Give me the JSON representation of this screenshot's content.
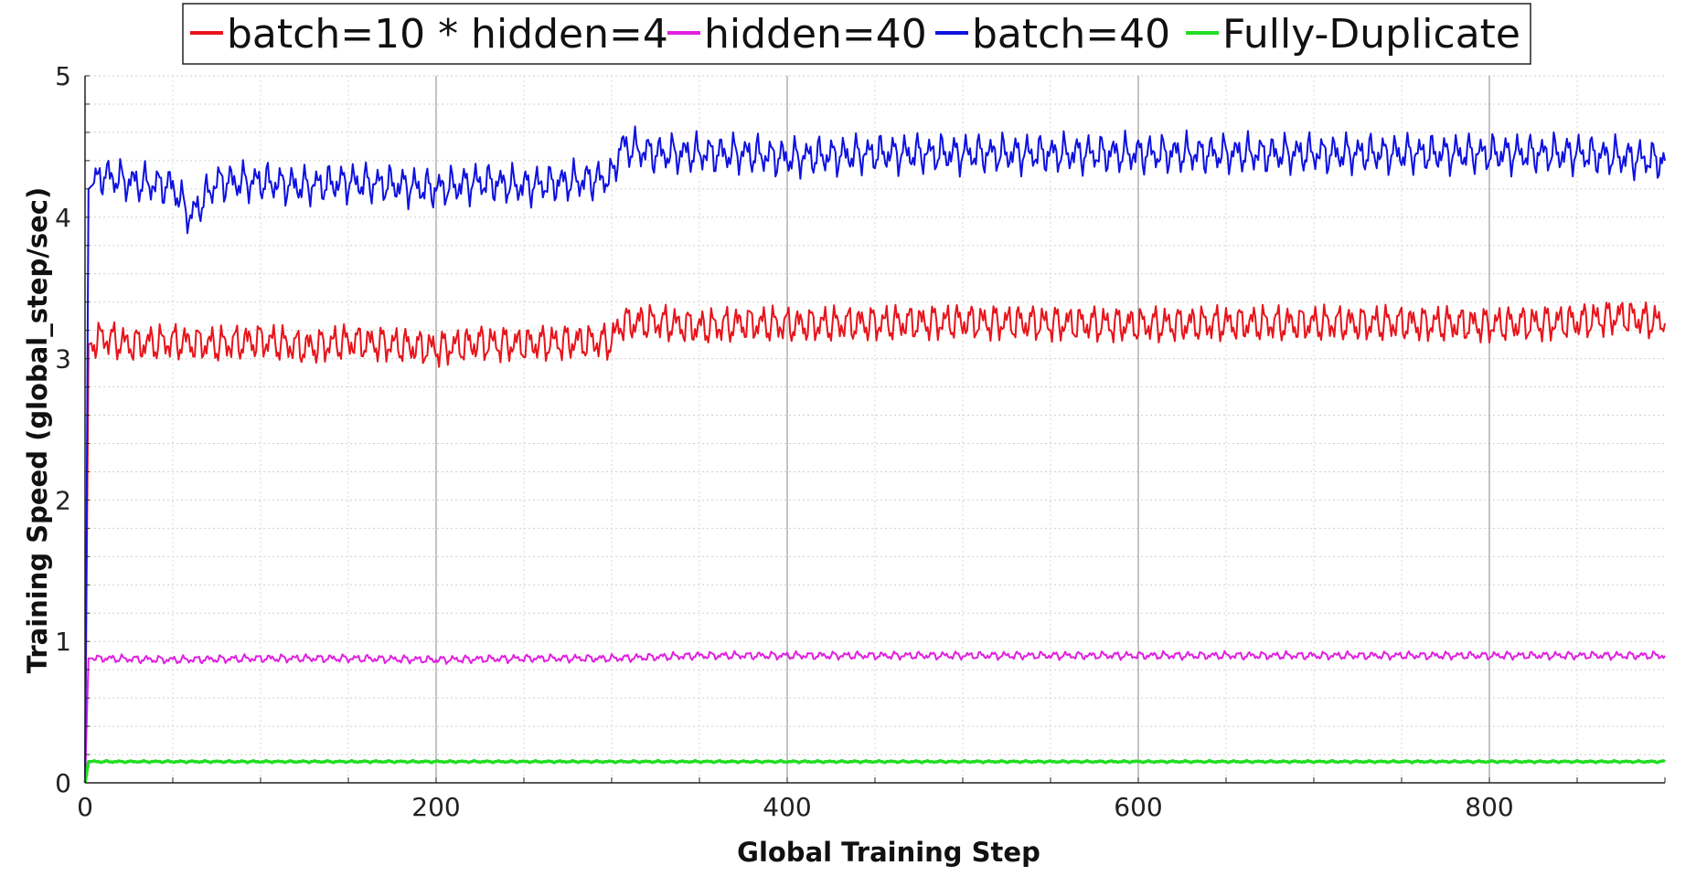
{
  "chart_data": {
    "type": "line",
    "title": "",
    "xlabel": "Global Training Step",
    "ylabel": "Training Speed (global_step/sec)",
    "xlim": [
      0,
      900
    ],
    "ylim": [
      0,
      5
    ],
    "x_ticks": [
      0,
      200,
      400,
      600,
      800
    ],
    "y_ticks": [
      0,
      1,
      2,
      3,
      4,
      5
    ],
    "grid": true,
    "legend_position": "top-center",
    "series": [
      {
        "name": "batch=10 * hidden=4",
        "color": "#e8141b",
        "x": [
          0,
          2,
          10,
          25,
          50,
          75,
          100,
          125,
          150,
          175,
          200,
          225,
          250,
          275,
          300,
          305,
          325,
          350,
          375,
          400,
          450,
          500,
          550,
          600,
          650,
          700,
          750,
          800,
          850,
          875,
          900
        ],
        "y": [
          0.0,
          3.1,
          3.15,
          3.1,
          3.12,
          3.1,
          3.13,
          3.08,
          3.12,
          3.1,
          3.07,
          3.11,
          3.1,
          3.12,
          3.12,
          3.25,
          3.26,
          3.22,
          3.25,
          3.24,
          3.25,
          3.26,
          3.25,
          3.24,
          3.25,
          3.25,
          3.25,
          3.24,
          3.26,
          3.3,
          3.25
        ]
      },
      {
        "name": "hidden=40",
        "color": "#e020e0",
        "x": [
          0,
          2,
          10,
          50,
          100,
          150,
          200,
          250,
          300,
          350,
          400,
          450,
          500,
          550,
          600,
          650,
          700,
          750,
          800,
          850,
          900
        ],
        "y": [
          0.0,
          0.88,
          0.88,
          0.87,
          0.88,
          0.88,
          0.87,
          0.88,
          0.88,
          0.9,
          0.9,
          0.9,
          0.9,
          0.9,
          0.9,
          0.9,
          0.9,
          0.9,
          0.9,
          0.9,
          0.9
        ]
      },
      {
        "name": "batch=40",
        "color": "#0f12e0",
        "x": [
          0,
          2,
          10,
          25,
          50,
          60,
          75,
          100,
          125,
          150,
          175,
          200,
          225,
          250,
          275,
          300,
          305,
          325,
          350,
          375,
          400,
          450,
          500,
          550,
          600,
          650,
          700,
          750,
          800,
          850,
          900
        ],
        "y": [
          0.0,
          4.2,
          4.3,
          4.25,
          4.22,
          4.0,
          4.25,
          4.25,
          4.22,
          4.25,
          4.23,
          4.2,
          4.25,
          4.22,
          4.25,
          4.28,
          4.5,
          4.45,
          4.45,
          4.45,
          4.42,
          4.45,
          4.45,
          4.45,
          4.45,
          4.45,
          4.45,
          4.45,
          4.45,
          4.45,
          4.4
        ]
      },
      {
        "name": "Fully-Duplicate",
        "color": "#22dd22",
        "x": [
          0,
          2,
          10,
          100,
          200,
          300,
          400,
          500,
          600,
          700,
          800,
          900
        ],
        "y": [
          0.0,
          0.15,
          0.15,
          0.15,
          0.15,
          0.15,
          0.15,
          0.15,
          0.15,
          0.15,
          0.15,
          0.15
        ]
      }
    ]
  }
}
